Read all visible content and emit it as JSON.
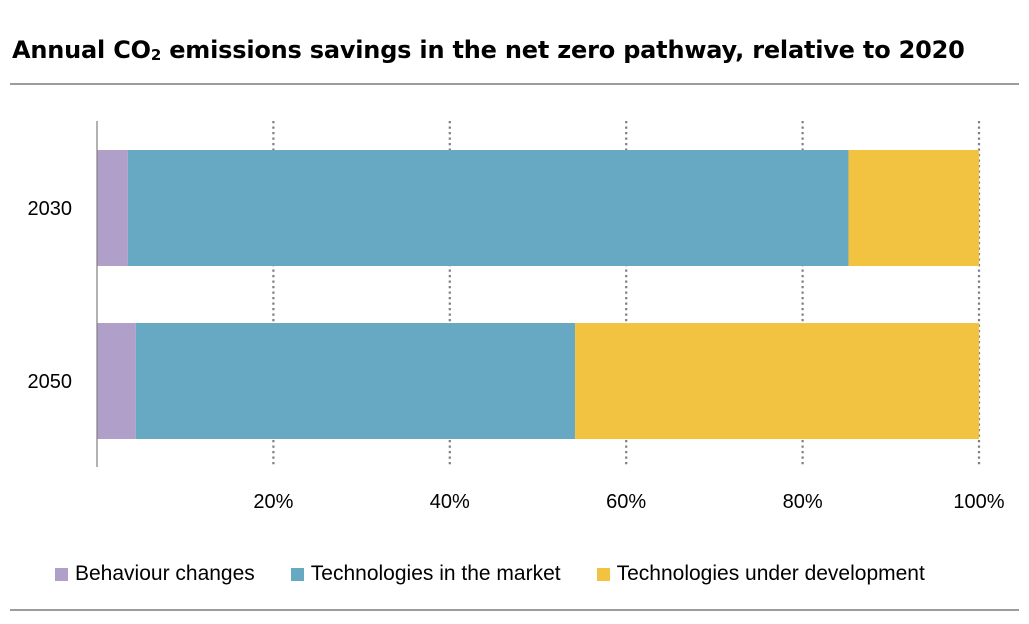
{
  "header": {
    "title_prefix": "Annual CO",
    "title_sub": "2",
    "title_suffix": " emissions savings in the net zero pathway, relative to 2020"
  },
  "chart_data": {
    "type": "bar",
    "orientation": "horizontal",
    "stacked": true,
    "categories": [
      "2030",
      "2050"
    ],
    "series": [
      {
        "name": "Behaviour changes",
        "color": "#b09fc8",
        "values": [
          3.5,
          4.4
        ]
      },
      {
        "name": "Technologies in the market",
        "color": "#67a9c3",
        "values": [
          81.7,
          49.8
        ]
      },
      {
        "name": "Technologies under development",
        "color": "#f2c341",
        "values": [
          14.8,
          45.8
        ]
      }
    ],
    "xlim": [
      0,
      100
    ],
    "xticks": [
      20,
      40,
      60,
      80,
      100
    ],
    "xtick_labels": [
      "20%",
      "40%",
      "60%",
      "80%",
      "100%"
    ],
    "grid": "vertical-dotted",
    "legend_position": "bottom"
  }
}
